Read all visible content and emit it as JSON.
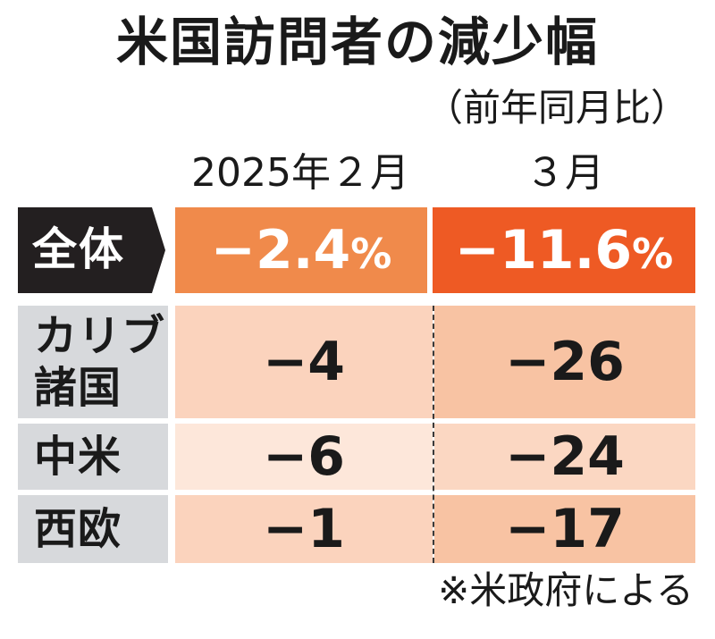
{
  "title": "米国訪問者の減少幅",
  "subtitle": "（前年同月比）",
  "columns": [
    "2025年２月",
    "３月"
  ],
  "total_row": {
    "label": "全体",
    "values": [
      "−2.4",
      "−11.6"
    ],
    "unit": "%"
  },
  "rows": [
    {
      "label_lines": [
        "カリブ",
        "諸国"
      ],
      "values": [
        "−4",
        "−26"
      ]
    },
    {
      "label_lines": [
        "中米"
      ],
      "values": [
        "−6",
        "−24"
      ]
    },
    {
      "label_lines": [
        "西欧"
      ],
      "values": [
        "−1",
        "−17"
      ]
    }
  ],
  "note": "※米政府による",
  "colors": {
    "total_label_bg": "#231f20",
    "total_feb_bg": "#f08a4b",
    "total_mar_bg": "#ee5a24",
    "label_bg": "#d7d9dc",
    "row_feb_bg": [
      "#fbd3bd",
      "#fde7da",
      "#fbd3bd"
    ],
    "row_mar_bg": [
      "#f8c3a3",
      "#fbd7c2",
      "#f8c3a3"
    ],
    "text_dark": "#1a1a1a",
    "text_light": "#ffffff"
  },
  "chart_data": {
    "type": "table",
    "title": "米国訪問者の減少幅",
    "subtitle": "（前年同月比）",
    "columns": [
      "2025年２月",
      "３月"
    ],
    "unit": "%",
    "rows": [
      {
        "label": "全体",
        "values": [
          -2.4,
          -11.6
        ]
      },
      {
        "label": "カリブ諸国",
        "values": [
          -4,
          -26
        ]
      },
      {
        "label": "中米",
        "values": [
          -6,
          -24
        ]
      },
      {
        "label": "西欧",
        "values": [
          -1,
          -17
        ]
      }
    ]
  }
}
